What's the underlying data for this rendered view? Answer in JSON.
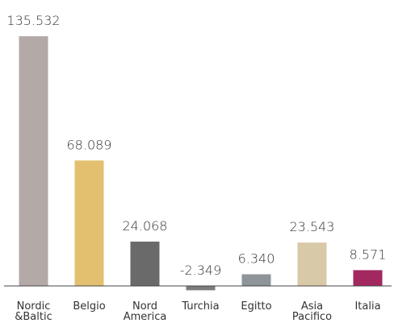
{
  "chart_data": {
    "type": "bar",
    "categories": [
      "Nordic &Baltic",
      "Belgio",
      "Nord America",
      "Turchia",
      "Egitto",
      "Asia Pacifico",
      "Italia"
    ],
    "values": [
      135532,
      68089,
      24068,
      -2349,
      6340,
      23543,
      8571
    ],
    "value_labels": [
      "135.532",
      "68.089",
      "24.068",
      "-2.349",
      "6.340",
      "23.543",
      "8.571"
    ],
    "colors": [
      "#b3aaa7",
      "#e2c070",
      "#6a6a6a",
      "#7c7c7c",
      "#8d949a",
      "#d8c9a9",
      "#a2285f"
    ],
    "ylim": [
      -10000,
      140000
    ]
  }
}
